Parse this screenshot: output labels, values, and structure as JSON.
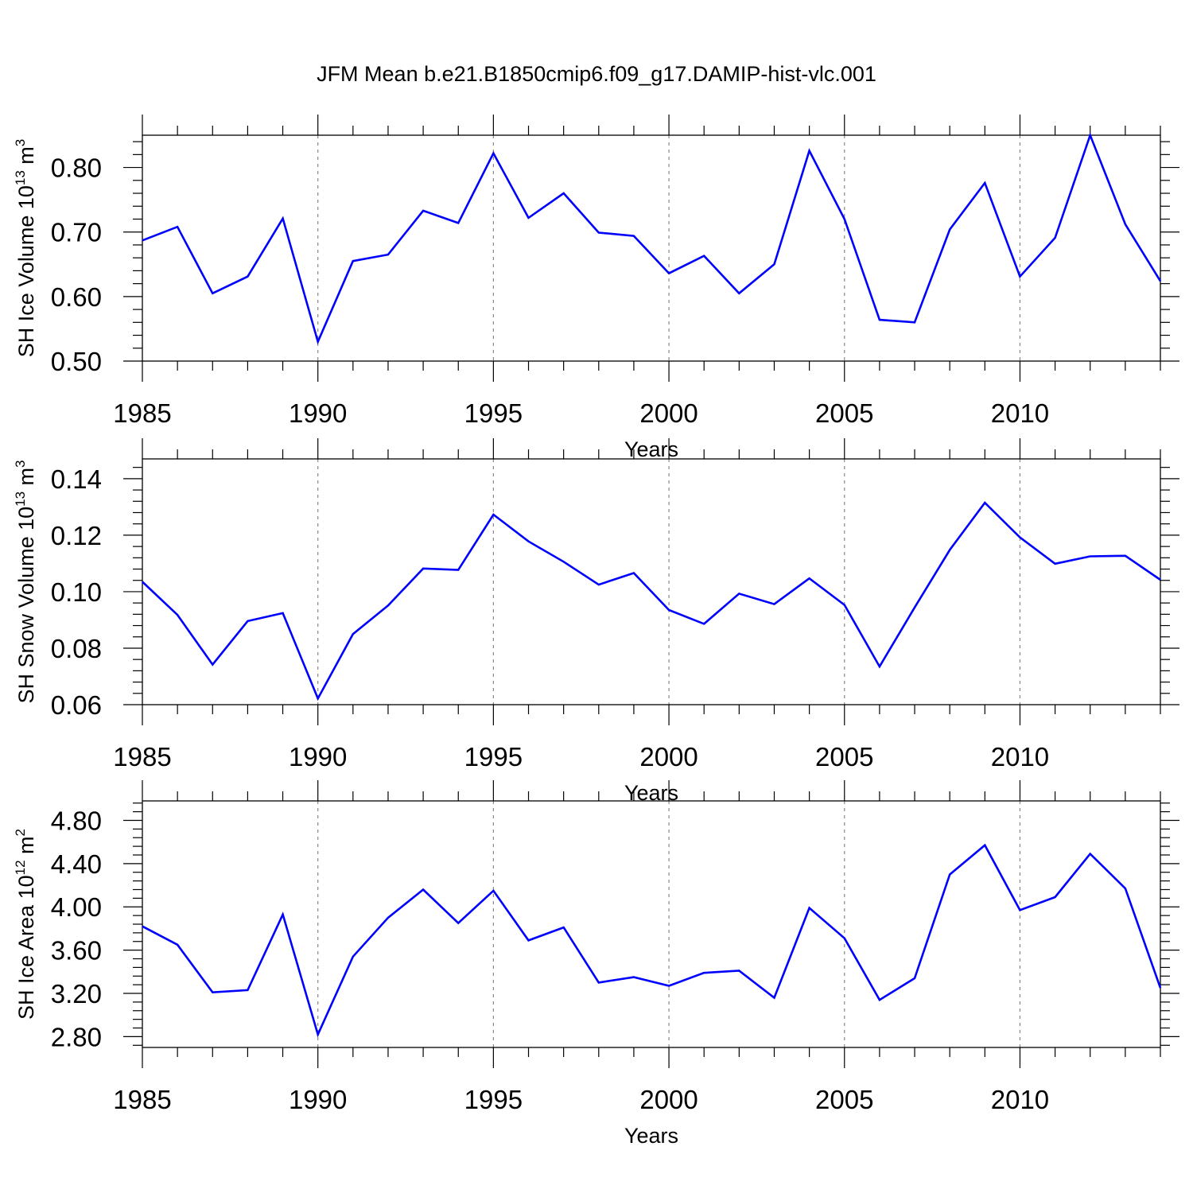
{
  "figure": {
    "title": "JFM Mean b.e21.B1850cmip6.f09_g17.DAMIP-hist-vlc.001",
    "line_color": "#0000ff",
    "grid_color": "#888888"
  },
  "chart_data": [
    {
      "type": "line",
      "title": "",
      "xlabel": "Years",
      "ylabel_main": "SH Ice Volume 10",
      "ylabel_exp": "13",
      "ylabel_unit": " m",
      "ylabel_unit_exp": "3",
      "xlim": [
        1985,
        2014
      ],
      "ylim": [
        0.5,
        0.85
      ],
      "x_ticks": [
        1985,
        1990,
        1995,
        2000,
        2005,
        2010
      ],
      "y_ticks": [
        0.5,
        0.6,
        0.7,
        0.8
      ],
      "y_tick_labels": [
        "0.50",
        "0.60",
        "0.70",
        "0.80"
      ],
      "grid": "dashed vertical at x ticks",
      "series": [
        {
          "color": "#0000ff",
          "x": [
            1985,
            1986,
            1987,
            1988,
            1989,
            1990,
            1991,
            1992,
            1993,
            1994,
            1995,
            1996,
            1997,
            1998,
            1999,
            2000,
            2001,
            2002,
            2003,
            2004,
            2005,
            2006,
            2007,
            2008,
            2009,
            2010,
            2011,
            2012,
            2013,
            2014
          ],
          "y": [
            0.687,
            0.708,
            0.605,
            0.631,
            0.721,
            0.53,
            0.655,
            0.665,
            0.733,
            0.714,
            0.822,
            0.722,
            0.76,
            0.699,
            0.694,
            0.636,
            0.663,
            0.605,
            0.65,
            0.826,
            0.72,
            0.564,
            0.56,
            0.704,
            0.776,
            0.631,
            0.691,
            0.85,
            0.712,
            0.624
          ]
        }
      ]
    },
    {
      "type": "line",
      "title": "",
      "xlabel": "Years",
      "ylabel_main": "SH Snow Volume 10",
      "ylabel_exp": "13",
      "ylabel_unit": " m",
      "ylabel_unit_exp": "3",
      "xlim": [
        1985,
        2014
      ],
      "ylim": [
        0.06,
        0.147
      ],
      "x_ticks": [
        1985,
        1990,
        1995,
        2000,
        2005,
        2010
      ],
      "y_ticks": [
        0.06,
        0.08,
        0.1,
        0.12,
        0.14
      ],
      "y_tick_labels": [
        "0.06",
        "0.08",
        "0.10",
        "0.12",
        "0.14"
      ],
      "grid": "dashed vertical at x ticks",
      "series": [
        {
          "color": "#0000ff",
          "x": [
            1985,
            1986,
            1987,
            1988,
            1989,
            1990,
            1991,
            1992,
            1993,
            1994,
            1995,
            1996,
            1997,
            1998,
            1999,
            2000,
            2001,
            2002,
            2003,
            2004,
            2005,
            2006,
            2007,
            2008,
            2009,
            2010,
            2011,
            2012,
            2013,
            2014
          ],
          "y": [
            0.1035,
            0.0918,
            0.0742,
            0.0896,
            0.0924,
            0.0622,
            0.085,
            0.0951,
            0.1082,
            0.1077,
            0.1273,
            0.1178,
            0.1106,
            0.1025,
            0.1066,
            0.0935,
            0.0886,
            0.0993,
            0.0956,
            0.1047,
            0.0953,
            0.0735,
            0.0944,
            0.1148,
            0.1315,
            0.1192,
            0.1099,
            0.1125,
            0.1127,
            0.1042
          ]
        }
      ]
    },
    {
      "type": "line",
      "title": "",
      "xlabel": "Years",
      "ylabel_main": "SH Ice Area 10",
      "ylabel_exp": "12",
      "ylabel_unit": " m",
      "ylabel_unit_exp": "2",
      "xlim": [
        1985,
        2014
      ],
      "ylim": [
        2.7,
        4.98
      ],
      "x_ticks": [
        1985,
        1990,
        1995,
        2000,
        2005,
        2010
      ],
      "y_ticks": [
        2.8,
        3.2,
        3.6,
        4.0,
        4.4,
        4.8
      ],
      "y_tick_labels": [
        "2.80",
        "3.20",
        "3.60",
        "4.00",
        "4.40",
        "4.80"
      ],
      "grid": "dashed vertical at x ticks",
      "series": [
        {
          "color": "#0000ff",
          "x": [
            1985,
            1986,
            1987,
            1988,
            1989,
            1990,
            1991,
            1992,
            1993,
            1994,
            1995,
            1996,
            1997,
            1998,
            1999,
            2000,
            2001,
            2002,
            2003,
            2004,
            2005,
            2006,
            2007,
            2008,
            2009,
            2010,
            2011,
            2012,
            2013,
            2014
          ],
          "y": [
            3.82,
            3.65,
            3.21,
            3.23,
            3.93,
            2.82,
            3.54,
            3.9,
            4.16,
            3.85,
            4.15,
            3.69,
            3.81,
            3.3,
            3.35,
            3.27,
            3.39,
            3.41,
            3.16,
            3.99,
            3.71,
            3.14,
            3.34,
            4.3,
            4.57,
            3.97,
            4.09,
            4.49,
            4.17,
            3.25
          ]
        }
      ]
    }
  ]
}
